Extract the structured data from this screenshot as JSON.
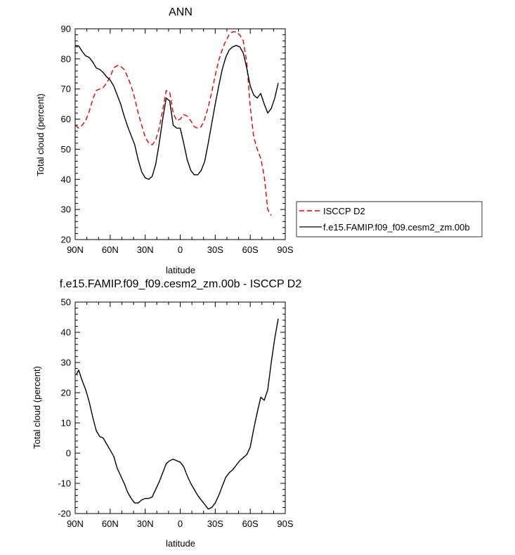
{
  "chart_data": [
    {
      "type": "line",
      "title": "ANN",
      "xlabel": "latitude",
      "ylabel": "Total cloud (percent)",
      "xlim": [
        90,
        -90
      ],
      "ylim": [
        20,
        90
      ],
      "x_ticks": [
        90,
        60,
        30,
        0,
        -30,
        -60,
        -90
      ],
      "x_tick_labels": [
        "90N",
        "60N",
        "30N",
        "0",
        "30S",
        "60S",
        "90S"
      ],
      "y_ticks": [
        20,
        30,
        40,
        50,
        60,
        70,
        80,
        90
      ],
      "y_tick_labels": [
        "20",
        "30",
        "40",
        "50",
        "60",
        "70",
        "80",
        "90"
      ],
      "grid": false,
      "legend": "right",
      "series": [
        {
          "name": "ISCCP D2",
          "color": "#e00000",
          "dash": "dashed",
          "x": [
            90,
            87,
            84,
            81,
            78,
            75,
            72,
            69,
            66,
            63,
            60,
            57,
            54,
            51,
            48,
            45,
            42,
            39,
            36,
            33,
            30,
            27,
            24,
            21,
            18,
            15,
            12,
            9,
            6,
            3,
            0,
            -3,
            -6,
            -9,
            -12,
            -15,
            -18,
            -21,
            -24,
            -27,
            -30,
            -33,
            -36,
            -39,
            -42,
            -45,
            -48,
            -51,
            -54,
            -57,
            -60,
            -63,
            -66,
            -69,
            -72,
            -75,
            -78,
            -81,
            -84,
            -87,
            -90
          ],
          "y": [
            58,
            57,
            58,
            59.5,
            62.5,
            66.5,
            69.5,
            70,
            70.5,
            72,
            74,
            77,
            77.8,
            77.5,
            76.5,
            74,
            71,
            67,
            62,
            58,
            54,
            52,
            51.5,
            53,
            57,
            63,
            69.5,
            69,
            62,
            59.5,
            60,
            61.5,
            61,
            59.5,
            57.5,
            57,
            57.5,
            60,
            64,
            69,
            74.5,
            79.5,
            83,
            86,
            88,
            89,
            89,
            88,
            86,
            79,
            64,
            54,
            50,
            47,
            41,
            30,
            28,
            null,
            null,
            null,
            null
          ]
        },
        {
          "name": "f.e15.FAMIP.f09_f09.cesm2_zm.00b",
          "color": "#000000",
          "dash": "solid",
          "x": [
            90,
            87,
            84,
            81,
            78,
            75,
            72,
            69,
            66,
            63,
            60,
            57,
            54,
            51,
            48,
            45,
            42,
            39,
            36,
            33,
            30,
            27,
            24,
            21,
            18,
            15,
            12,
            9,
            6,
            3,
            0,
            -3,
            -6,
            -9,
            -12,
            -15,
            -18,
            -21,
            -24,
            -27,
            -30,
            -33,
            -36,
            -39,
            -42,
            -45,
            -48,
            -51,
            -54,
            -57,
            -60,
            -63,
            -66,
            -69,
            -72,
            -75,
            -78,
            -81,
            -84,
            -87,
            -90
          ],
          "y": [
            84.5,
            84.3,
            82.5,
            81,
            80.5,
            79,
            77,
            76.5,
            75.5,
            74,
            73,
            71,
            68,
            65,
            61,
            57.5,
            54.5,
            51.5,
            46.5,
            42.5,
            40.5,
            40,
            41,
            45,
            52,
            60,
            67,
            66,
            58,
            57,
            57,
            52,
            46.5,
            43,
            41.5,
            41.5,
            43,
            46,
            52,
            58.5,
            65,
            71,
            76.5,
            80.5,
            83,
            84,
            84.5,
            84,
            82,
            77,
            71,
            68,
            67,
            68.5,
            65,
            62,
            63.5,
            67,
            72,
            null,
            null
          ]
        }
      ]
    },
    {
      "type": "line",
      "title": "f.e15.FAMIP.f09_f09.cesm2_zm.00b - ISCCP D2",
      "xlabel": "latitude",
      "ylabel": "Total cloud (percent)",
      "xlim": [
        90,
        -90
      ],
      "ylim": [
        -20,
        50
      ],
      "x_ticks": [
        90,
        60,
        30,
        0,
        -30,
        -60,
        -90
      ],
      "x_tick_labels": [
        "90N",
        "60N",
        "30N",
        "0",
        "30S",
        "60S",
        "90S"
      ],
      "y_ticks": [
        -20,
        -10,
        0,
        10,
        20,
        30,
        40,
        50
      ],
      "y_tick_labels": [
        "-20",
        "-10",
        "0",
        "10",
        "20",
        "30",
        "40",
        "50"
      ],
      "grid": false,
      "legend": "none",
      "series": [
        {
          "color": "#000000",
          "dash": "solid",
          "x": [
            89,
            87,
            84,
            81,
            78,
            75,
            72,
            69,
            66,
            63,
            60,
            57,
            54,
            51,
            48,
            45,
            42,
            39,
            36,
            33,
            30,
            27,
            24,
            21,
            18,
            15,
            12,
            9,
            6,
            3,
            0,
            -3,
            -6,
            -9,
            -12,
            -15,
            -18,
            -21,
            -24,
            -27,
            -30,
            -33,
            -36,
            -39,
            -42,
            -45,
            -48,
            -51,
            -54,
            -57,
            -60,
            -63,
            -66,
            -69,
            -72,
            -75,
            -78,
            -81,
            -84,
            -87,
            -89
          ],
          "y": [
            26,
            27.5,
            24,
            21,
            17,
            12,
            7.5,
            5.5,
            5,
            3,
            1,
            -1,
            -5,
            -7.5,
            -10,
            -13,
            -15,
            -16.5,
            -16.5,
            -15.5,
            -15,
            -15,
            -14.5,
            -12,
            -9.5,
            -6.5,
            -3.5,
            -2.5,
            -2,
            -2.5,
            -3,
            -4.5,
            -7.5,
            -10,
            -12,
            -14,
            -15.5,
            -17,
            -18.5,
            -18,
            -16.5,
            -14,
            -11,
            -8,
            -6.5,
            -5.5,
            -4,
            -2.5,
            -1.5,
            -0.5,
            2,
            8,
            13.5,
            18.5,
            17.5,
            21,
            30,
            38,
            44.5,
            null,
            null
          ]
        }
      ]
    }
  ]
}
